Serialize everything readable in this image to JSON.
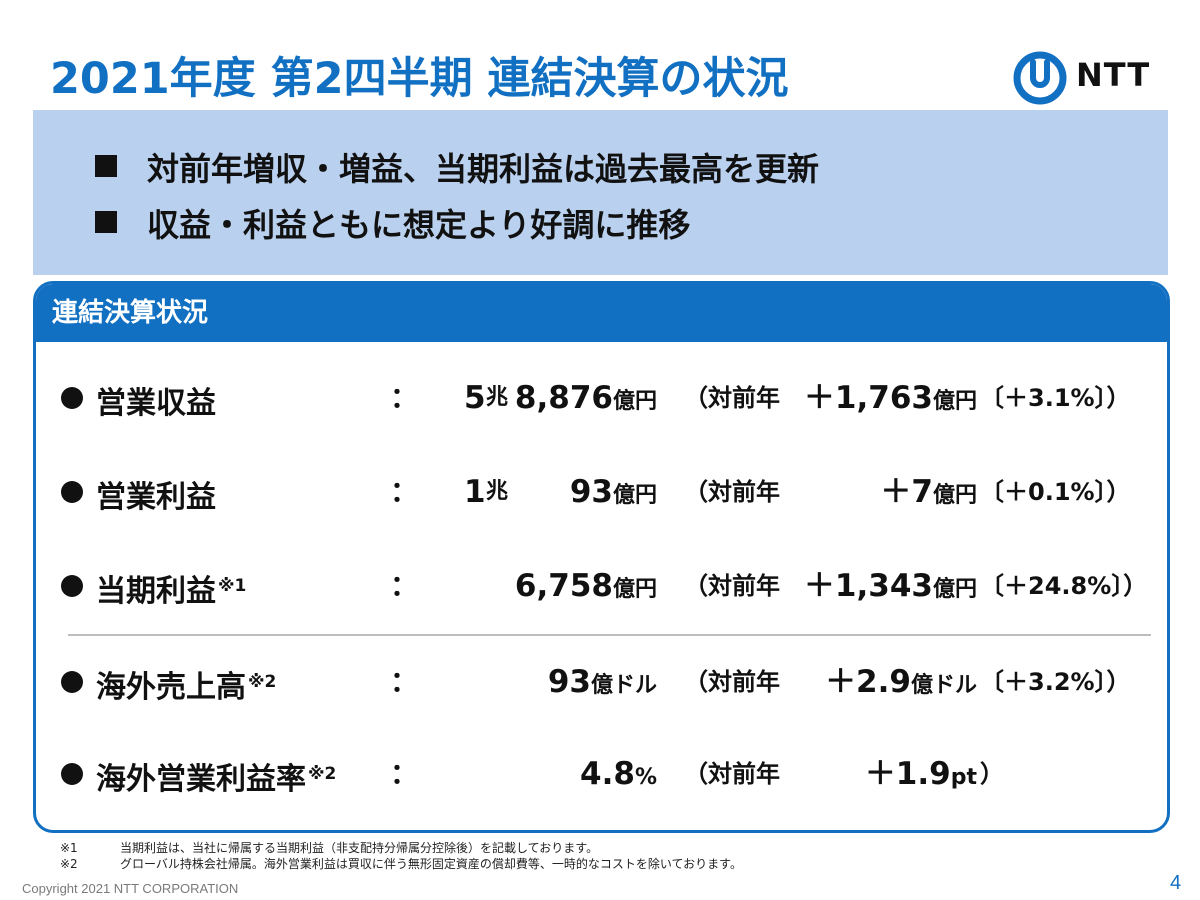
{
  "title": "2021年度 第2四半期 連結決算の状況",
  "logo": {
    "text": "NTT",
    "icon": "ntt-logo-icon"
  },
  "highlights": [
    "対前年増収・増益、当期利益は過去最高を更新",
    "収益・利益ともに想定より好調に推移"
  ],
  "panel": {
    "header": "連結決算状況",
    "colon": "：",
    "yoy_label": "（対前年",
    "rows": [
      {
        "label": "営業収益",
        "note": "",
        "value_a": "5",
        "value_a_unit": "兆",
        "value_b": "8,876",
        "value_b_unit": "億円",
        "delta": "＋1,763",
        "delta_unit": "億円",
        "pct": "〔＋3.1%〕）"
      },
      {
        "label": "営業利益",
        "note": "",
        "value_a": "1",
        "value_a_unit": "兆",
        "value_b": "93",
        "value_b_unit": "億円",
        "delta": "＋7",
        "delta_unit": "億円",
        "pct": "〔＋0.1%〕）"
      },
      {
        "label": "当期利益",
        "note": "※1",
        "value_a": "",
        "value_a_unit": "",
        "value_b": "6,758",
        "value_b_unit": "億円",
        "delta": "＋1,343",
        "delta_unit": "億円",
        "pct": "〔＋24.8%〕）"
      },
      {
        "label": "海外売上高",
        "note": "※2",
        "value_a": "",
        "value_a_unit": "",
        "value_b": "93",
        "value_b_unit": "億ドル",
        "delta": "＋2.9",
        "delta_unit": "億ドル",
        "pct": "〔＋3.2%〕）"
      },
      {
        "label": "海外営業利益率",
        "note": "※2",
        "value_a": "",
        "value_a_unit": "",
        "value_b": "4.8",
        "value_b_unit": "%",
        "delta": "＋1.9",
        "delta_unit": "pt",
        "pct": "）"
      }
    ]
  },
  "footnotes": [
    {
      "mark": "※1",
      "text": "当期利益は、当社に帰属する当期利益（非支配持分帰属分控除後）を記載しております。"
    },
    {
      "mark": "※2",
      "text": "グローバル持株会社帰属。海外営業利益は買収に伴う無形固定資産の償却費等、一時的なコストを除いております。"
    }
  ],
  "copyright": "Copyright 2021 NTT CORPORATION",
  "page_number": "4",
  "colors": {
    "accent": "#1270C2",
    "banner": "#B9D0EE"
  }
}
